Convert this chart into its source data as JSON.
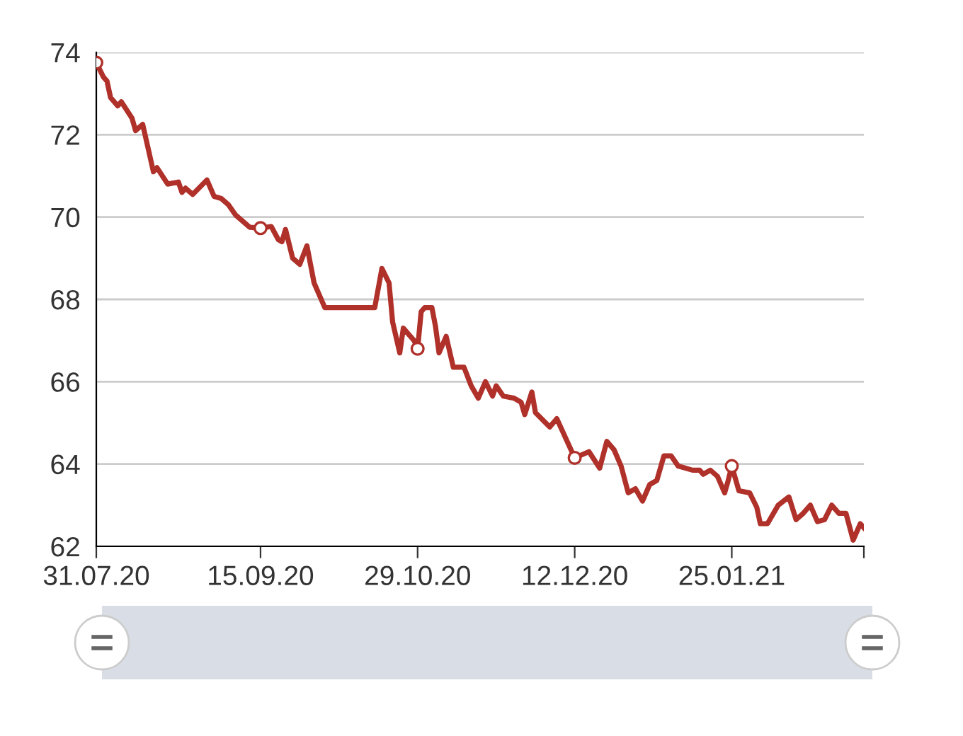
{
  "chart_data": {
    "type": "line",
    "x": [
      "2020-07-31",
      "2020-08-02",
      "2020-08-03",
      "2020-08-04",
      "2020-08-06",
      "2020-08-07",
      "2020-08-10",
      "2020-08-11",
      "2020-08-13",
      "2020-08-16",
      "2020-08-17",
      "2020-08-20",
      "2020-08-23",
      "2020-08-24",
      "2020-08-25",
      "2020-08-27",
      "2020-08-31",
      "2020-09-02",
      "2020-09-04",
      "2020-09-06",
      "2020-09-08",
      "2020-09-10",
      "2020-09-12",
      "2020-09-15",
      "2020-09-18",
      "2020-09-20",
      "2020-09-21",
      "2020-09-22",
      "2020-09-24",
      "2020-09-26",
      "2020-09-28",
      "2020-09-30",
      "2020-10-03",
      "2020-10-17",
      "2020-10-19",
      "2020-10-21",
      "2020-10-22",
      "2020-10-24",
      "2020-10-25",
      "2020-10-27",
      "2020-10-28",
      "2020-10-29",
      "2020-10-30",
      "2020-10-31",
      "2020-11-02",
      "2020-11-03",
      "2020-11-04",
      "2020-11-06",
      "2020-11-08",
      "2020-11-11",
      "2020-11-13",
      "2020-11-15",
      "2020-11-17",
      "2020-11-19",
      "2020-11-20",
      "2020-11-22",
      "2020-11-25",
      "2020-11-27",
      "2020-11-28",
      "2020-11-30",
      "2020-12-01",
      "2020-12-05",
      "2020-12-07",
      "2020-12-12",
      "2020-12-16",
      "2020-12-19",
      "2020-12-21",
      "2020-12-23",
      "2020-12-25",
      "2020-12-27",
      "2020-12-29",
      "2020-12-31",
      "2021-01-02",
      "2021-01-04",
      "2021-01-06",
      "2021-01-08",
      "2021-01-10",
      "2021-01-14",
      "2021-01-16",
      "2021-01-17",
      "2021-01-19",
      "2021-01-21",
      "2021-01-23",
      "2021-01-24",
      "2021-01-25",
      "2021-01-27",
      "2021-01-30",
      "2021-02-01",
      "2021-02-02",
      "2021-02-04",
      "2021-02-07",
      "2021-02-10",
      "2021-02-12",
      "2021-02-14",
      "2021-02-16",
      "2021-02-18",
      "2021-02-20",
      "2021-02-22",
      "2021-02-24",
      "2021-02-26",
      "2021-02-28",
      "2021-03-02",
      "2021-03-03"
    ],
    "series": [
      {
        "color": "#b0302a",
        "values": [
          73.75,
          73.4,
          73.3,
          72.9,
          72.7,
          72.8,
          72.4,
          72.1,
          72.25,
          71.1,
          71.2,
          70.8,
          70.85,
          70.6,
          70.7,
          70.55,
          70.9,
          70.5,
          70.45,
          70.3,
          70.05,
          69.9,
          69.75,
          69.73,
          69.77,
          69.45,
          69.4,
          69.7,
          69.0,
          68.85,
          69.3,
          68.4,
          67.8,
          67.8,
          68.75,
          68.4,
          67.45,
          66.7,
          67.3,
          67.1,
          67.0,
          66.8,
          67.7,
          67.8,
          67.8,
          67.35,
          66.7,
          67.1,
          66.35,
          66.35,
          65.9,
          65.6,
          66.0,
          65.65,
          65.9,
          65.65,
          65.6,
          65.5,
          65.2,
          65.75,
          65.25,
          64.9,
          65.1,
          64.15,
          64.3,
          63.9,
          64.55,
          64.35,
          63.95,
          63.3,
          63.4,
          63.1,
          63.5,
          63.6,
          64.2,
          64.2,
          63.95,
          63.85,
          63.85,
          63.75,
          63.85,
          63.7,
          63.3,
          63.6,
          63.95,
          63.35,
          63.3,
          62.95,
          62.55,
          62.55,
          63.0,
          63.2,
          62.65,
          62.8,
          63.0,
          62.6,
          62.65,
          63.0,
          62.8,
          62.8,
          62.15,
          62.55,
          62.45
        ]
      },
      {
        "type": "scatter",
        "color": "#b0302a",
        "x": [
          "2020-07-31",
          "2020-09-15",
          "2020-10-29",
          "2020-12-12",
          "2021-01-25"
        ],
        "values": [
          73.75,
          69.73,
          66.8,
          64.15,
          63.95
        ]
      }
    ],
    "xlim": [
      "2020-07-31",
      "2021-03-03"
    ],
    "xticks": [
      {
        "value": "2020-07-31",
        "label": "31.07.20"
      },
      {
        "value": "2020-09-15",
        "label": "15.09.20"
      },
      {
        "value": "2020-10-29",
        "label": "29.10.20"
      },
      {
        "value": "2020-12-12",
        "label": "12.12.20"
      },
      {
        "value": "2021-01-25",
        "label": "25.01.21"
      },
      {
        "value": "2021-03-03",
        "label": null
      }
    ],
    "ylim": [
      62,
      74
    ],
    "yticks": [
      62,
      64,
      66,
      68,
      70,
      72,
      74
    ],
    "grid": "y",
    "line_style": "solid"
  }
}
